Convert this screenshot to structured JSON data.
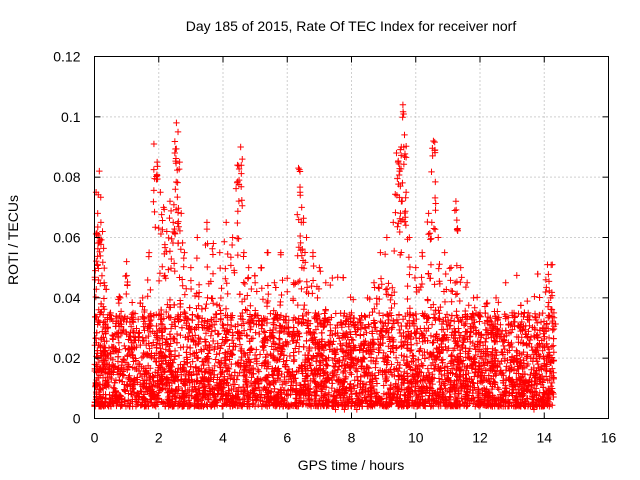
{
  "chart_data": {
    "type": "scatter",
    "title": "Day 185 of 2015, Rate Of TEC Index for receiver norf",
    "xlabel": "GPS time / hours",
    "ylabel": "ROTI / TECUs",
    "xlim": [
      0,
      16
    ],
    "ylim": [
      0,
      0.12
    ],
    "x_ticks": [
      0,
      2,
      4,
      6,
      8,
      10,
      12,
      14,
      16
    ],
    "x_tick_labels": [
      "0",
      "2",
      "4",
      "6",
      "8",
      "10",
      "12",
      "14",
      "16"
    ],
    "y_ticks": [
      0,
      0.02,
      0.04,
      0.06,
      0.08,
      0.1,
      0.12
    ],
    "y_tick_labels": [
      "0",
      "0.02",
      "0.04",
      "0.06",
      "0.08",
      "0.1",
      "0.12"
    ],
    "grid": true,
    "marker": "+",
    "color": "#ff0000",
    "series": [
      {
        "name": "ROTI",
        "x_range_observed": [
          0,
          14.3
        ],
        "points": [
          [
            0.05,
            0.075
          ],
          [
            0.1,
            0.068
          ],
          [
            0.15,
            0.082
          ],
          [
            0.2,
            0.065
          ],
          [
            0.25,
            0.062
          ],
          [
            0.1,
            0.051
          ],
          [
            0.3,
            0.045
          ],
          [
            0.5,
            0.035
          ],
          [
            0.8,
            0.04
          ],
          [
            1.0,
            0.052
          ],
          [
            1.2,
            0.035
          ],
          [
            1.5,
            0.04
          ],
          [
            1.7,
            0.055
          ],
          [
            1.85,
            0.091
          ],
          [
            1.95,
            0.085
          ],
          [
            2.05,
            0.075
          ],
          [
            2.15,
            0.07
          ],
          [
            2.25,
            0.062
          ],
          [
            2.35,
            0.072
          ],
          [
            2.45,
            0.065
          ],
          [
            2.5,
            0.088
          ],
          [
            2.55,
            0.098
          ],
          [
            2.6,
            0.095
          ],
          [
            2.65,
            0.085
          ],
          [
            2.7,
            0.068
          ],
          [
            2.8,
            0.055
          ],
          [
            3.0,
            0.05
          ],
          [
            3.2,
            0.06
          ],
          [
            3.5,
            0.065
          ],
          [
            3.7,
            0.058
          ],
          [
            3.9,
            0.055
          ],
          [
            4.1,
            0.065
          ],
          [
            4.3,
            0.06
          ],
          [
            4.45,
            0.084
          ],
          [
            4.5,
            0.079
          ],
          [
            4.55,
            0.09
          ],
          [
            4.65,
            0.055
          ],
          [
            4.8,
            0.05
          ],
          [
            5.0,
            0.045
          ],
          [
            5.2,
            0.05
          ],
          [
            5.4,
            0.055
          ],
          [
            5.6,
            0.045
          ],
          [
            5.8,
            0.055
          ],
          [
            6.0,
            0.042
          ],
          [
            6.2,
            0.045
          ],
          [
            6.35,
            0.083
          ],
          [
            6.4,
            0.075
          ],
          [
            6.45,
            0.07
          ],
          [
            6.5,
            0.065
          ],
          [
            6.6,
            0.06
          ],
          [
            6.8,
            0.055
          ],
          [
            7.0,
            0.05
          ],
          [
            7.2,
            0.045
          ],
          [
            7.5,
            0.03
          ],
          [
            7.8,
            0.028
          ],
          [
            8.0,
            0.035
          ],
          [
            8.2,
            0.032
          ],
          [
            8.5,
            0.04
          ],
          [
            8.7,
            0.045
          ],
          [
            8.9,
            0.055
          ],
          [
            9.1,
            0.06
          ],
          [
            9.3,
            0.065
          ],
          [
            9.4,
            0.088
          ],
          [
            9.45,
            0.085
          ],
          [
            9.5,
            0.082
          ],
          [
            9.55,
            0.09
          ],
          [
            9.6,
            0.104
          ],
          [
            9.65,
            0.094
          ],
          [
            9.7,
            0.075
          ],
          [
            9.8,
            0.06
          ],
          [
            10.0,
            0.05
          ],
          [
            10.2,
            0.055
          ],
          [
            10.4,
            0.068
          ],
          [
            10.5,
            0.065
          ],
          [
            10.55,
            0.092
          ],
          [
            10.6,
            0.089
          ],
          [
            10.7,
            0.06
          ],
          [
            10.9,
            0.055
          ],
          [
            11.1,
            0.05
          ],
          [
            11.25,
            0.072
          ],
          [
            11.3,
            0.063
          ],
          [
            11.4,
            0.05
          ],
          [
            11.6,
            0.045
          ],
          [
            11.8,
            0.04
          ],
          [
            12.0,
            0.035
          ],
          [
            12.2,
            0.038
          ],
          [
            12.5,
            0.04
          ],
          [
            12.8,
            0.045
          ],
          [
            13.0,
            0.035
          ],
          [
            13.3,
            0.032
          ],
          [
            13.5,
            0.035
          ],
          [
            13.7,
            0.03
          ],
          [
            13.9,
            0.032
          ],
          [
            14.05,
            0.046
          ],
          [
            14.1,
            0.051
          ],
          [
            14.2,
            0.04
          ],
          [
            14.25,
            0.051
          ],
          [
            14.3,
            0.035
          ]
        ],
        "dense_band": {
          "note": "thousands of points spanning x 0-14.3 concentrated between 0.005 and 0.035",
          "typical_min": 0.004,
          "typical_max": 0.035
        }
      }
    ]
  }
}
